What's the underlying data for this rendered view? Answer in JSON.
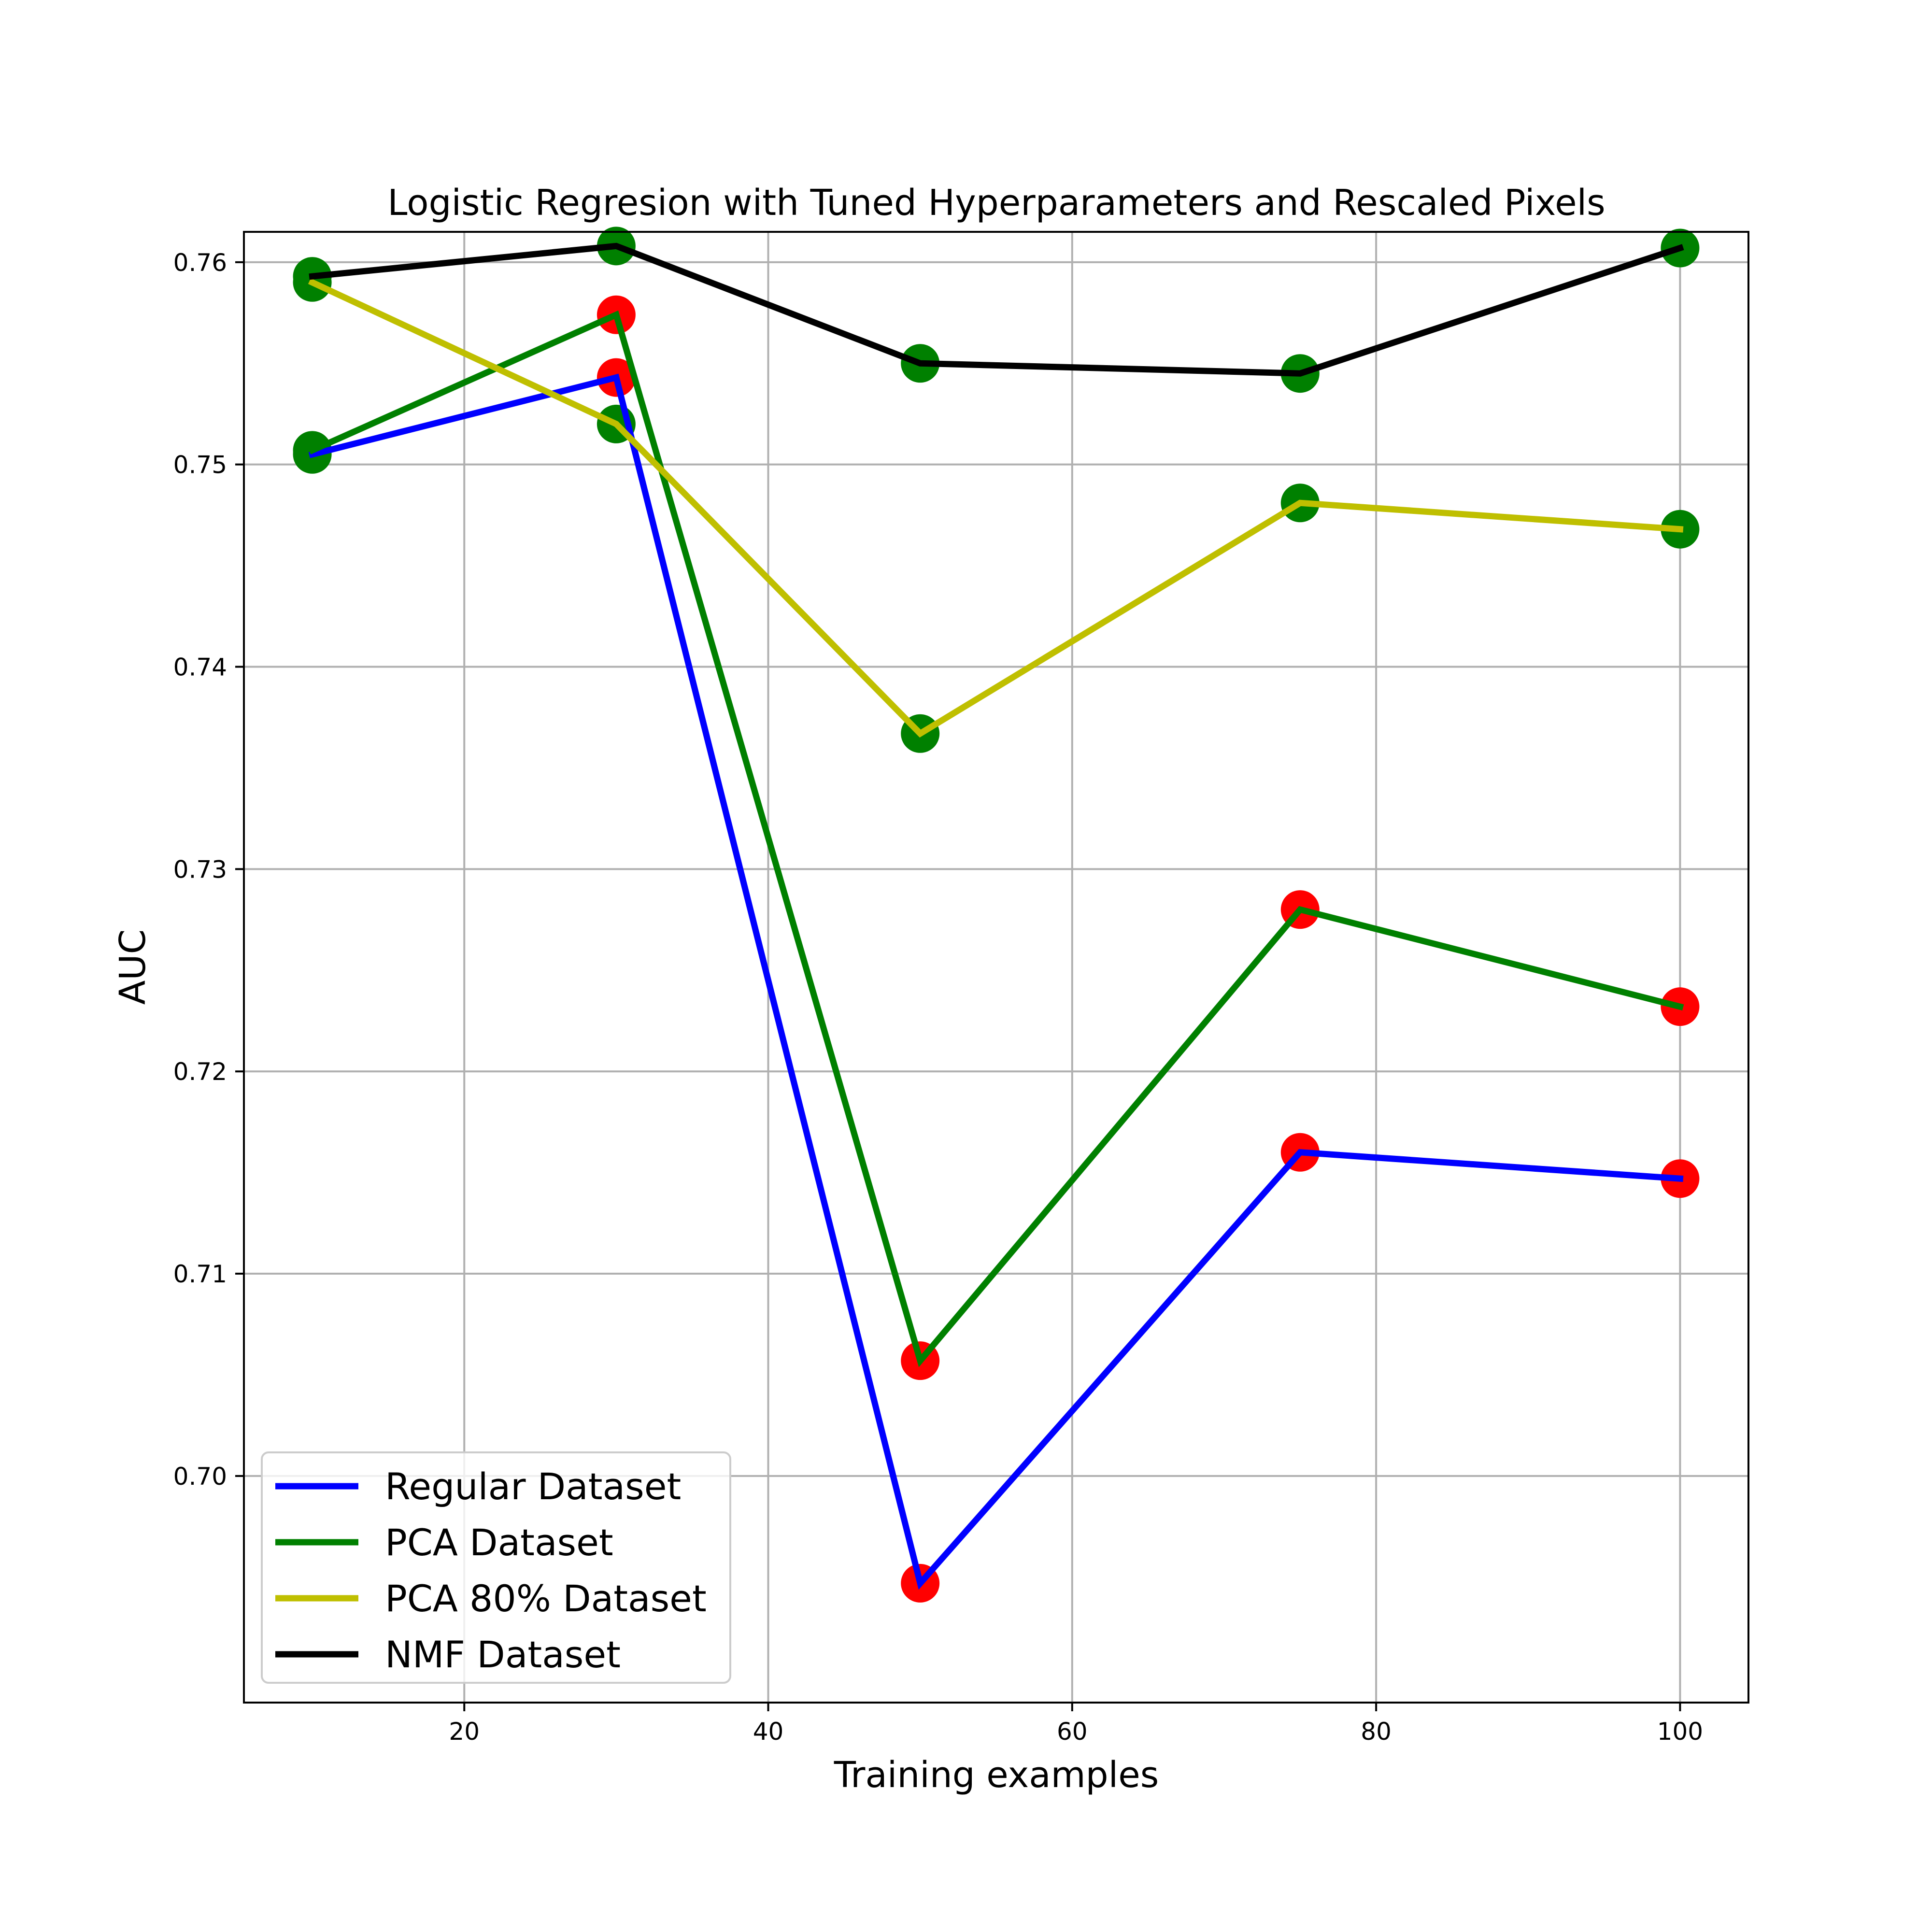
{
  "chart_data": {
    "type": "line",
    "title": "Logistic Regresion with Tuned Hyperparameters and Rescaled Pixels",
    "xlabel": "Training examples",
    "ylabel": "AUC",
    "xlim": [
      5.5,
      104.5
    ],
    "ylim": [
      0.6888,
      0.7615
    ],
    "x_ticks": [
      20,
      40,
      60,
      80,
      100
    ],
    "y_ticks": [
      0.7,
      0.71,
      0.72,
      0.73,
      0.74,
      0.75,
      0.76
    ],
    "x_tick_labels": [
      "20",
      "40",
      "60",
      "80",
      "100"
    ],
    "y_tick_labels": [
      "0.70",
      "0.71",
      "0.72",
      "0.73",
      "0.74",
      "0.75",
      "0.76"
    ],
    "grid": true,
    "legend_position": "lower-left",
    "x": [
      10,
      30,
      50,
      75,
      100
    ],
    "series": [
      {
        "name": "Regular Dataset",
        "color": "#0000ff",
        "values": [
          0.7505,
          0.7543,
          0.6947,
          0.716,
          0.7147
        ],
        "marker_colors": [
          "#008000",
          "#ff0000",
          "#ff0000",
          "#ff0000",
          "#ff0000"
        ]
      },
      {
        "name": "PCA Dataset",
        "color": "#008000",
        "values": [
          0.7507,
          0.7574,
          0.7057,
          0.728,
          0.7232
        ],
        "marker_colors": [
          "#008000",
          "#ff0000",
          "#ff0000",
          "#ff0000",
          "#ff0000"
        ]
      },
      {
        "name": "PCA 80% Dataset",
        "color": "#bfbf00",
        "values": [
          0.759,
          0.752,
          0.7367,
          0.7481,
          0.7468
        ],
        "marker_colors": [
          "#008000",
          "#008000",
          "#008000",
          "#008000",
          "#008000"
        ]
      },
      {
        "name": "NMF Dataset",
        "color": "#000000",
        "values": [
          0.7593,
          0.7608,
          0.755,
          0.7545,
          0.7607
        ],
        "marker_colors": [
          "#008000",
          "#008000",
          "#008000",
          "#008000",
          "#008000"
        ]
      }
    ]
  }
}
